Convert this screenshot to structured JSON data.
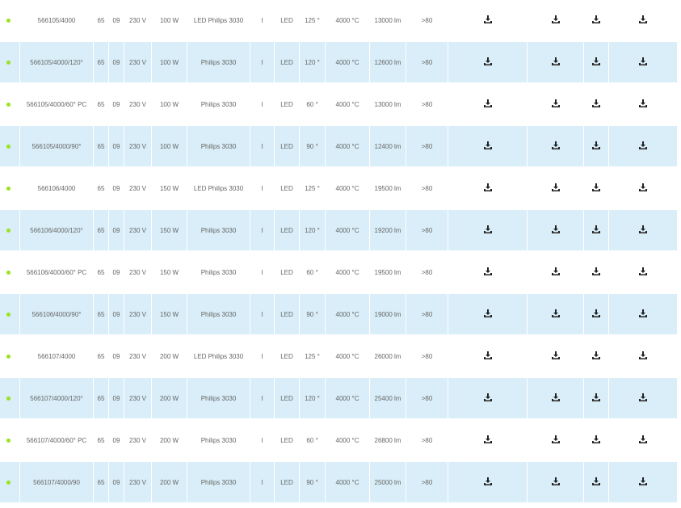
{
  "colors": {
    "status_dot": "#9be21f",
    "row_alt_bg": "#d9eef8",
    "icon": "#222222"
  },
  "status_icon": "availability-dot",
  "download_icon": "download-icon",
  "rows": [
    {
      "code": "566105/4000",
      "ip": "65",
      "ik": "09",
      "voltage": "230 V",
      "power": "100 W",
      "source": "LED Philips 3030",
      "class": "I",
      "type": "LED",
      "angle": "125 °",
      "cct": "4000 °C",
      "lumen": "13000 lm",
      "cri": ">80"
    },
    {
      "code": "566105/4000/120°",
      "ip": "65",
      "ik": "09",
      "voltage": "230 V",
      "power": "100 W",
      "source": "Philips 3030",
      "class": "I",
      "type": "LED",
      "angle": "120 °",
      "cct": "4000 °C",
      "lumen": "12600 lm",
      "cri": ">80"
    },
    {
      "code": "566105/4000/60° PC",
      "ip": "65",
      "ik": "09",
      "voltage": "230 V",
      "power": "100 W",
      "source": "Philips 3030",
      "class": "I",
      "type": "LED",
      "angle": "60 °",
      "cct": "4000 °C",
      "lumen": "13000 lm",
      "cri": ">80"
    },
    {
      "code": "566105/4000/90°",
      "ip": "65",
      "ik": "09",
      "voltage": "230 V",
      "power": "100 W",
      "source": "Philips 3030",
      "class": "I",
      "type": "LED",
      "angle": "90 °",
      "cct": "4000 °C",
      "lumen": "12400 lm",
      "cri": ">80"
    },
    {
      "code": "566106/4000",
      "ip": "65",
      "ik": "09",
      "voltage": "230 V",
      "power": "150 W",
      "source": "LED Philips 3030",
      "class": "I",
      "type": "LED",
      "angle": "125 °",
      "cct": "4000 °C",
      "lumen": "19500 lm",
      "cri": ">80"
    },
    {
      "code": "566106/4000/120°",
      "ip": "65",
      "ik": "09",
      "voltage": "230 V",
      "power": "150 W",
      "source": "Philips 3030",
      "class": "I",
      "type": "LED",
      "angle": "120 °",
      "cct": "4000 °C",
      "lumen": "19200 lm",
      "cri": ">80"
    },
    {
      "code": "566106/4000/60° PC",
      "ip": "65",
      "ik": "09",
      "voltage": "230 V",
      "power": "150 W",
      "source": "Philips 3030",
      "class": "I",
      "type": "LED",
      "angle": "60 °",
      "cct": "4000 °C",
      "lumen": "19500 lm",
      "cri": ">80"
    },
    {
      "code": "566106/4000/90°",
      "ip": "65",
      "ik": "09",
      "voltage": "230 V",
      "power": "150 W",
      "source": "Philips 3030",
      "class": "I",
      "type": "LED",
      "angle": "90 °",
      "cct": "4000 °C",
      "lumen": "19000 lm",
      "cri": ">80"
    },
    {
      "code": "566107/4000",
      "ip": "65",
      "ik": "09",
      "voltage": "230 V",
      "power": "200 W",
      "source": "LED Philips 3030",
      "class": "I",
      "type": "LED",
      "angle": "125 °",
      "cct": "4000 °C",
      "lumen": "26000 lm",
      "cri": ">80"
    },
    {
      "code": "566107/4000/120°",
      "ip": "65",
      "ik": "09",
      "voltage": "230 V",
      "power": "200 W",
      "source": "Philips 3030",
      "class": "I",
      "type": "LED",
      "angle": "120 °",
      "cct": "4000 °C",
      "lumen": "25400 lm",
      "cri": ">80"
    },
    {
      "code": "566107/4000/60° PC",
      "ip": "65",
      "ik": "09",
      "voltage": "230 V",
      "power": "200 W",
      "source": "Philips 3030",
      "class": "I",
      "type": "LED",
      "angle": "60 °",
      "cct": "4000 °C",
      "lumen": "26800 lm",
      "cri": ">80"
    },
    {
      "code": "566107/4000/90",
      "ip": "65",
      "ik": "09",
      "voltage": "230 V",
      "power": "200 W",
      "source": "Philips 3030",
      "class": "I",
      "type": "LED",
      "angle": "90 °",
      "cct": "4000 °C",
      "lumen": "25000 lm",
      "cri": ">80"
    }
  ]
}
